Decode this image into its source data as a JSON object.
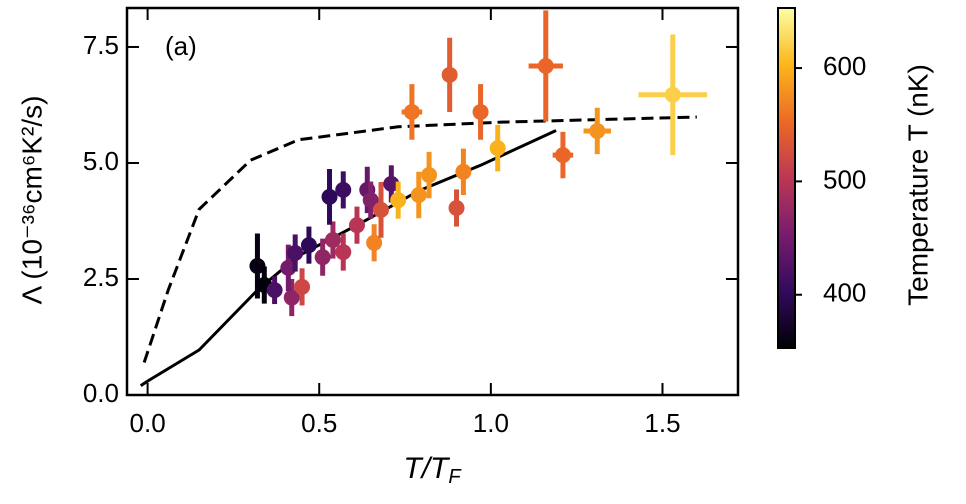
{
  "chart_data": {
    "type": "scatter",
    "annotation": "(a)",
    "xlabel": [
      "T/T",
      "F"
    ],
    "ylabel": "Λ (10⁻³⁶cm⁶K²/s)",
    "colorbar_label": "Temperature T (nK)",
    "xlim": [
      -0.06,
      1.72
    ],
    "ylim": [
      0,
      8.34
    ],
    "xticks": [
      {
        "value": 0,
        "label": "0.0"
      },
      {
        "value": 0.5,
        "label": "0.5"
      },
      {
        "value": 1,
        "label": "1.0"
      },
      {
        "value": 1.5,
        "label": "1.5"
      }
    ],
    "yticks": [
      {
        "value": 0,
        "label": "0.0"
      },
      2.5,
      {
        "value": 5,
        "label": "5.0"
      },
      7.5
    ],
    "clim": [
      353,
      653
    ],
    "cticks": [
      400,
      500,
      600
    ],
    "colormap": [
      "#000004",
      "#320a5e",
      "#781c6d",
      "#bc3754",
      "#ed6925",
      "#fbb61a",
      "#fcffa4"
    ],
    "points": {
      "x": [
        0.32,
        0.34,
        0.37,
        0.42,
        0.41,
        0.45,
        0.43,
        0.47,
        0.51,
        0.54,
        0.57,
        0.53,
        0.57,
        0.61,
        0.64,
        0.65,
        0.66,
        0.68,
        0.71,
        0.73,
        0.77,
        0.79,
        0.82,
        0.88,
        0.9,
        0.92,
        0.97,
        1.02,
        1.16,
        1.21,
        1.31,
        1.53
      ],
      "y": [
        2.78,
        2.37,
        2.26,
        2.1,
        2.74,
        2.33,
        3.06,
        3.23,
        2.97,
        3.34,
        3.08,
        4.27,
        4.42,
        3.66,
        4.42,
        4.2,
        3.28,
        3.99,
        4.55,
        4.2,
        6.1,
        4.31,
        4.74,
        6.9,
        4.03,
        4.81,
        6.1,
        5.32,
        7.09,
        5.17,
        5.69,
        6.47
      ],
      "yerr": [
        0.7,
        0.4,
        0.3,
        0.4,
        0.5,
        0.4,
        0.4,
        0.4,
        0.4,
        0.4,
        0.4,
        0.6,
        0.4,
        0.4,
        0.5,
        0.4,
        0.4,
        0.6,
        0.4,
        0.4,
        0.6,
        0.5,
        0.5,
        0.8,
        0.4,
        0.5,
        0.6,
        0.5,
        1.2,
        0.5,
        0.5,
        1.3
      ],
      "xerr": [
        null,
        null,
        null,
        null,
        null,
        null,
        null,
        null,
        null,
        null,
        null,
        null,
        null,
        null,
        null,
        null,
        null,
        null,
        null,
        null,
        0.03,
        null,
        null,
        null,
        null,
        null,
        null,
        null,
        0.05,
        0.03,
        0.04,
        0.1
      ],
      "temperature": [
        360,
        355,
        420,
        470,
        450,
        520,
        420,
        400,
        470,
        480,
        500,
        400,
        410,
        500,
        440,
        460,
        570,
        530,
        430,
        600,
        560,
        580,
        580,
        540,
        530,
        570,
        550,
        600,
        550,
        550,
        580,
        620
      ]
    },
    "series": [
      {
        "style": "solid",
        "color": "#000000",
        "x": [
          -0.02,
          0.0,
          0.15,
          0.32,
          0.44,
          0.62,
          0.79,
          0.97,
          1.19
        ],
        "values": [
          0.2,
          0.3,
          0.97,
          2.26,
          3.0,
          3.7,
          4.4,
          4.95,
          5.7
        ]
      },
      {
        "style": "dashed",
        "color": "#000000",
        "x": [
          -0.01,
          0.06,
          0.15,
          0.3,
          0.44,
          0.73,
          1.03,
          1.6
        ],
        "values": [
          0.7,
          2.26,
          4.0,
          5.06,
          5.5,
          5.78,
          5.88,
          5.99
        ]
      }
    ]
  }
}
